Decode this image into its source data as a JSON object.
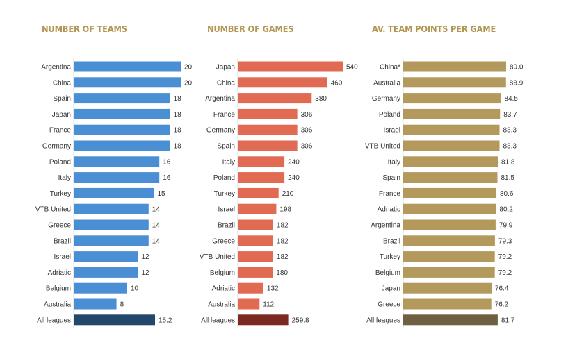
{
  "chart_data": [
    {
      "type": "bar",
      "orientation": "horizontal",
      "title": "NUMBER OF TEAMS",
      "color": "#4a8fd4",
      "total_color": "#22476b",
      "categories": [
        "Argentina",
        "China",
        "Spain",
        "Japan",
        "France",
        "Germany",
        "Poland",
        "Italy",
        "Turkey",
        "VTB United",
        "Greece",
        "Brazil",
        "Israel",
        "Adriatic",
        "Belgium",
        "Australia",
        "All leagues"
      ],
      "values": [
        20,
        20,
        18,
        18,
        18,
        18,
        16,
        16,
        15,
        14,
        14,
        14,
        12,
        12,
        10,
        8,
        15.2
      ],
      "labels": [
        "20",
        "20",
        "18",
        "18",
        "18",
        "18",
        "16",
        "16",
        "15",
        "14",
        "14",
        "14",
        "12",
        "12",
        "10",
        "8",
        "15.2"
      ],
      "xlim": [
        0,
        20
      ]
    },
    {
      "type": "bar",
      "orientation": "horizontal",
      "title": "NUMBER OF GAMES",
      "color": "#e06a52",
      "total_color": "#7a2a20",
      "categories": [
        "Japan",
        "China",
        "Argentina",
        "France",
        "Germany",
        "Spain",
        "Italy",
        "Poland",
        "Turkey",
        "Israel",
        "Brazil",
        "Greece",
        "VTB United",
        "Belgium",
        "Adriatic",
        "Australia",
        "All leagues"
      ],
      "values": [
        540,
        460,
        380,
        306,
        306,
        306,
        240,
        240,
        210,
        198,
        182,
        182,
        182,
        180,
        132,
        112,
        259.8
      ],
      "labels": [
        "540",
        "460",
        "380",
        "306",
        "306",
        "306",
        "240",
        "240",
        "210",
        "198",
        "182",
        "182",
        "182",
        "180",
        "132",
        "112",
        "259.8"
      ],
      "xlim": [
        0,
        540
      ]
    },
    {
      "type": "bar",
      "orientation": "horizontal",
      "title": "AV. TEAM POINTS PER GAME",
      "color": "#b39a5c",
      "total_color": "#6e6040",
      "categories": [
        "China*",
        "Australia",
        "Germany",
        "Poland",
        "Israel",
        "VTB United",
        "Italy",
        "Spain",
        "France",
        "Adriatic",
        "Argentina",
        "Brazil",
        "Turkey",
        "Belgium",
        "Japan",
        "Greece",
        "All leagues"
      ],
      "values": [
        89.0,
        88.9,
        84.5,
        83.7,
        83.3,
        83.3,
        81.8,
        81.5,
        80.6,
        80.2,
        79.9,
        79.3,
        79.2,
        79.2,
        76.4,
        76.2,
        81.7
      ],
      "labels": [
        "89.0",
        "88.9",
        "84.5",
        "83.7",
        "83.3",
        "83.3",
        "81.8",
        "81.5",
        "80.6",
        "80.2",
        "79.9",
        "79.3",
        "79.2",
        "79.2",
        "76.4",
        "76.2",
        "81.7"
      ],
      "xlim": [
        0,
        89.0
      ]
    }
  ]
}
